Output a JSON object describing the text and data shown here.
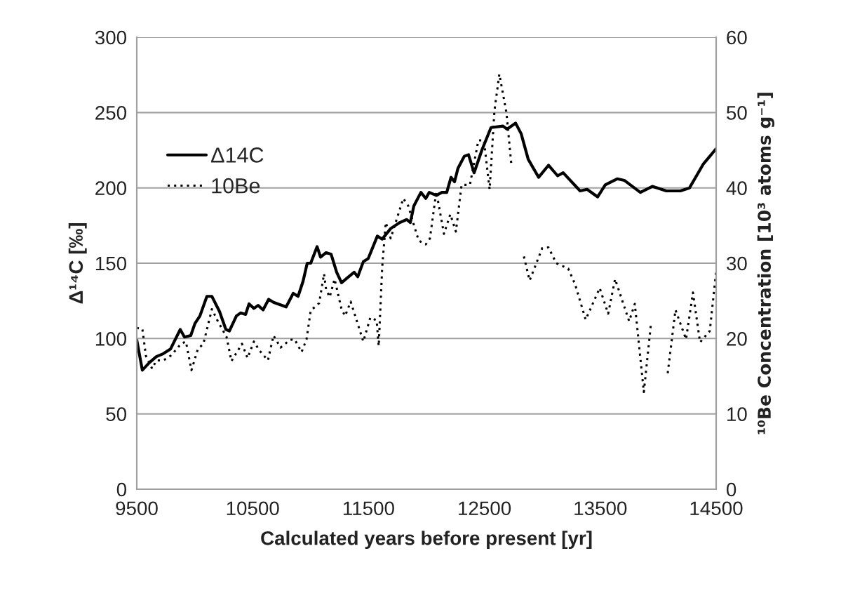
{
  "chart_data": {
    "type": "line",
    "xlabel": "Calculated years before present [yr]",
    "ylabel": "Δ¹⁴C [‰]",
    "y2label": "¹⁰Be Concentration [10³ atoms g⁻¹]",
    "xlim": [
      9500,
      14500
    ],
    "xticks": [
      9500,
      10500,
      11500,
      12500,
      13500,
      14500
    ],
    "ylim": [
      0,
      300
    ],
    "yticks": [
      0,
      50,
      100,
      150,
      200,
      250,
      300
    ],
    "y2lim": [
      0,
      60
    ],
    "y2ticks": [
      0,
      10,
      20,
      30,
      40,
      50,
      60
    ],
    "grid": "y",
    "legend": "top left",
    "series": [
      {
        "name": "Δ14C",
        "color": "#000000",
        "line_style": "solid",
        "x": [
          9500,
          9548,
          9609,
          9669,
          9730,
          9791,
          9875,
          9912,
          9966,
          10002,
          10045,
          10105,
          10148,
          10214,
          10269,
          10299,
          10360,
          10396,
          10439,
          10469,
          10511,
          10547,
          10590,
          10638,
          10680,
          10789,
          10850,
          10892,
          10935,
          10971,
          11001,
          11056,
          11086,
          11134,
          11177,
          11225,
          11267,
          11328,
          11376,
          11407,
          11455,
          11497,
          11576,
          11618,
          11691,
          11770,
          11830,
          11861,
          11891,
          11952,
          11994,
          12024,
          12085,
          12133,
          12175,
          12212,
          12242,
          12272,
          12327,
          12363,
          12411,
          12478,
          12557,
          12660,
          12696,
          12769,
          12817,
          12878,
          12968,
          13053,
          13132,
          13180,
          13326,
          13386,
          13477,
          13543,
          13646,
          13707,
          13846,
          13949,
          14070,
          14191,
          14270,
          14391,
          14500
        ],
        "values": [
          99,
          79,
          84,
          88,
          90,
          93,
          106,
          101,
          102,
          110,
          115,
          128,
          128,
          118,
          106,
          105,
          115,
          117,
          116,
          123,
          120,
          122,
          119,
          126,
          124,
          121,
          130,
          128,
          138,
          150,
          150,
          161,
          154,
          157,
          156,
          144,
          137,
          141,
          144,
          141,
          151,
          153,
          168,
          166,
          173,
          177,
          179,
          177,
          188,
          197,
          193,
          197,
          195,
          197,
          197,
          207,
          204,
          213,
          221,
          222,
          210,
          225,
          240,
          241,
          239,
          243,
          236,
          219,
          207,
          215,
          208,
          210,
          198,
          199,
          194,
          202,
          206,
          205,
          197,
          201,
          198,
          198,
          200,
          216,
          226
        ]
      },
      {
        "name": "10Be",
        "color": "#000000",
        "line_style": "dotted",
        "axis": "y2",
        "x": [
          9500,
          9548,
          9579,
          9633,
          9669,
          9730,
          9791,
          9845,
          9881,
          9924,
          9972,
          10027,
          10075,
          10148,
          10196,
          10275,
          10317,
          10360,
          10408,
          10456,
          10511,
          10559,
          10632,
          10680,
          10741,
          10820,
          10862,
          10922,
          10965,
          11001,
          11074,
          11116,
          11134,
          11165,
          11207,
          11267,
          11298,
          11346,
          11455,
          11516,
          11570,
          11588,
          11618,
          11649,
          11691,
          11800,
          11843,
          11891,
          11933,
          11994,
          12030,
          12085,
          12151,
          12206,
          12254,
          12303,
          12375,
          12448,
          12496,
          12545,
          12587,
          12629,
          12690,
          12732,
          12780,
          12841,
          12890,
          12999,
          13053,
          13120,
          13223,
          13283,
          13374,
          13495,
          13568,
          13628,
          13749,
          13798,
          13876,
          13937,
          14000,
          14082,
          14149,
          14240,
          14300,
          14361,
          14445,
          14500
        ],
        "values": [
          21.4,
          21.3,
          17.7,
          16.0,
          17.1,
          17.1,
          17.7,
          18.6,
          19.3,
          19.6,
          15.8,
          18.6,
          19.3,
          23.9,
          22.4,
          20.2,
          17.0,
          18.1,
          19.3,
          17.4,
          19.6,
          18.4,
          17.1,
          20.4,
          18.8,
          19.8,
          19.9,
          18.2,
          19.9,
          23.7,
          24.7,
          28.6,
          26.5,
          25.5,
          27.9,
          23.9,
          23.0,
          24.9,
          19.6,
          22.8,
          22.4,
          19.0,
          29.5,
          35.4,
          33.3,
          38.6,
          37.6,
          35.1,
          33.0,
          32.5,
          33.3,
          39.5,
          33.9,
          36.5,
          34.2,
          40.4,
          40.4,
          46.3,
          46.3,
          39.8,
          50.3,
          55.1,
          50.0,
          43.2,
          null,
          30.9,
          27.7,
          32.0,
          32.1,
          30.0,
          29.3,
          27.2,
          22.5,
          26.7,
          23.3,
          27.9,
          22.3,
          24.6,
          12.9,
          21.9,
          null,
          15.4,
          23.8,
          19.9,
          26.1,
          19.5,
          21.0,
          28.9
        ]
      }
    ]
  }
}
